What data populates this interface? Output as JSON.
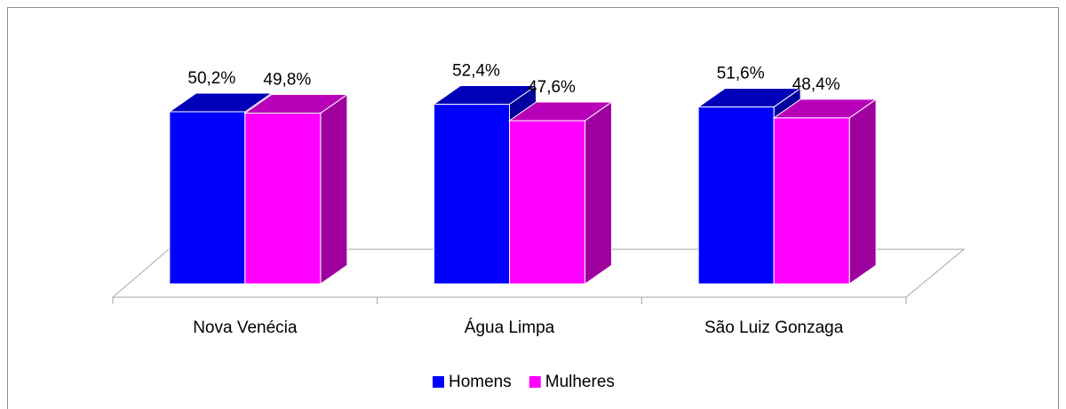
{
  "chart_data": {
    "type": "bar3d",
    "categories": [
      "Nova Venécia",
      "Água Limpa",
      "São Luiz Gonzaga"
    ],
    "series": [
      {
        "name": "Homens",
        "color": "#0000ff",
        "values": [
          50.2,
          52.4,
          51.6
        ],
        "value_labels": [
          "50,2%",
          "52,4%",
          "51,6%"
        ]
      },
      {
        "name": "Mulheres",
        "color": "#ff00ff",
        "values": [
          49.8,
          47.6,
          48.4
        ],
        "value_labels": [
          "49,8%",
          "47,6%",
          "48,4%"
        ]
      }
    ],
    "legend": "bottom"
  }
}
